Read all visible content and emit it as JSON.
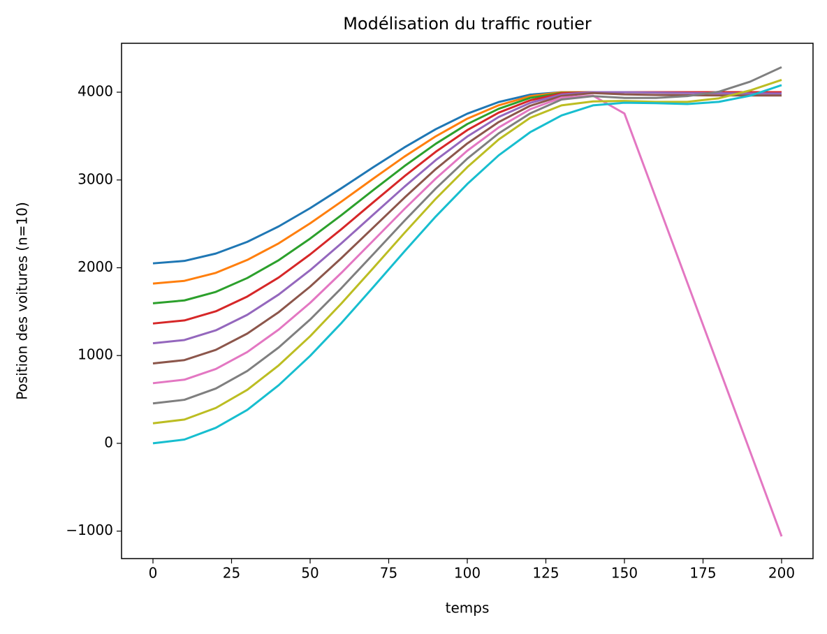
{
  "chart_data": {
    "type": "line",
    "title": "Modélisation du traffic routier",
    "x_label": "temps",
    "y_label": "Position des voitures (n=10)",
    "x": [
      0,
      10,
      20,
      30,
      40,
      50,
      60,
      70,
      80,
      90,
      100,
      110,
      120,
      130,
      140,
      150,
      160,
      170,
      180,
      190,
      200
    ],
    "series": [
      {
        "color": "#1f77b4",
        "values": [
          2050,
          2078,
          2162,
          2295,
          2471,
          2679,
          2907,
          3143,
          3371,
          3579,
          3755,
          3888,
          3972,
          4000,
          4000,
          4000,
          4000,
          4000,
          4000,
          4000,
          4000
        ]
      },
      {
        "color": "#ff7f0e",
        "values": [
          1820,
          1851,
          1942,
          2089,
          2278,
          2506,
          2755,
          3013,
          3266,
          3498,
          3698,
          3851,
          3954,
          3999,
          4000,
          4000,
          4000,
          4000,
          4000,
          4000,
          4000
        ]
      },
      {
        "color": "#2ca02c",
        "values": [
          1595,
          1628,
          1725,
          1883,
          2086,
          2332,
          2601,
          2882,
          3158,
          3413,
          3637,
          3811,
          3935,
          3991,
          4000,
          4000,
          4000,
          4000,
          4000,
          4000,
          4000
        ]
      },
      {
        "color": "#d62728",
        "values": [
          1365,
          1400,
          1504,
          1672,
          1889,
          2152,
          2441,
          2743,
          3042,
          3322,
          3568,
          3767,
          3907,
          3987,
          4000,
          4000,
          4000,
          4000,
          4000,
          4000,
          4000
        ]
      },
      {
        "color": "#9467bd",
        "values": [
          1140,
          1177,
          1287,
          1464,
          1695,
          1972,
          2280,
          2602,
          2923,
          3227,
          3495,
          3718,
          3878,
          3974,
          4000,
          4000,
          3995,
          3990,
          3988,
          3985,
          3985
        ]
      },
      {
        "color": "#8c564b",
        "values": [
          910,
          948,
          1065,
          1250,
          1494,
          1785,
          2112,
          2455,
          2798,
          3125,
          3416,
          3660,
          3845,
          3957,
          3990,
          3975,
          3968,
          3965,
          3963,
          3962,
          3962
        ]
      },
      {
        "color": "#e377c2",
        "values": [
          685,
          725,
          847,
          1040,
          1296,
          1600,
          1944,
          2306,
          2669,
          3017,
          3333,
          3598,
          3806,
          3938,
          3960,
          3757,
          2794,
          1831,
          868,
          -95,
          -1060
        ]
      },
      {
        "color": "#7f7f7f",
        "values": [
          455,
          496,
          624,
          824,
          1092,
          1410,
          1770,
          2151,
          2535,
          2904,
          3243,
          3531,
          3758,
          3917,
          3955,
          3935,
          3935,
          3955,
          4005,
          4120,
          4285
        ]
      },
      {
        "color": "#bcbd22",
        "values": [
          228,
          271,
          403,
          609,
          888,
          1220,
          1595,
          1993,
          2396,
          2787,
          3146,
          3461,
          3708,
          3850,
          3895,
          3900,
          3890,
          3890,
          3930,
          4020,
          4140
        ]
      },
      {
        "color": "#17becf",
        "values": [
          0,
          43,
          177,
          381,
          662,
          996,
          1372,
          1776,
          2186,
          2585,
          2954,
          3281,
          3544,
          3735,
          3850,
          3880,
          3875,
          3865,
          3890,
          3960,
          4080
        ]
      }
    ],
    "xlim": [
      -10,
      210
    ],
    "ylim": [
      -1313,
      4557
    ],
    "xticks": [
      0,
      25,
      50,
      75,
      100,
      125,
      150,
      175,
      200
    ],
    "yticks": [
      {
        "value": -1000,
        "label": "−1000"
      },
      0,
      1000,
      2000,
      3000,
      4000
    ]
  }
}
